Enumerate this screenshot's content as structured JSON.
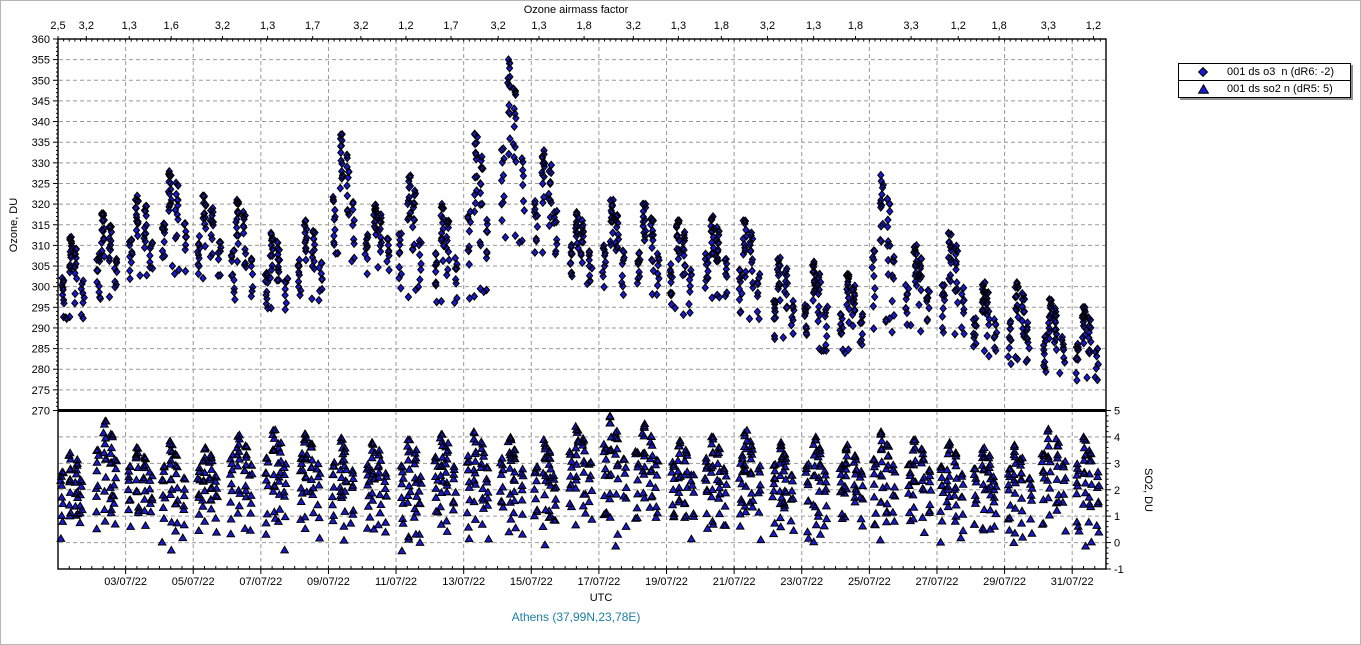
{
  "footer": {
    "text": "Athens (37,99N,23,78E)",
    "color": "#1C7FA6"
  },
  "legend": {
    "items": [
      {
        "marker": "diamond",
        "label": "001 ds o3  n (dR6: -2)"
      },
      {
        "marker": "triangle",
        "label": "001 ds so2 n (dR5: 5)"
      }
    ]
  },
  "chart_data": {
    "type": "scatter",
    "title": "Ozone airmass factor",
    "top_axis": {
      "label": "Ozone airmass factor",
      "ticks": [
        {
          "x": 0.0,
          "v": "2,5"
        },
        {
          "x": 0.027,
          "v": "3,2"
        },
        {
          "x": 0.068,
          "v": "1,3"
        },
        {
          "x": 0.108,
          "v": "1,6"
        },
        {
          "x": 0.157,
          "v": "3,2"
        },
        {
          "x": 0.2,
          "v": "1,3"
        },
        {
          "x": 0.243,
          "v": "1,7"
        },
        {
          "x": 0.289,
          "v": "3,2"
        },
        {
          "x": 0.332,
          "v": "1,2"
        },
        {
          "x": 0.375,
          "v": "1,7"
        },
        {
          "x": 0.42,
          "v": "3,2"
        },
        {
          "x": 0.459,
          "v": "1,3"
        },
        {
          "x": 0.502,
          "v": "1,8"
        },
        {
          "x": 0.549,
          "v": "3,2"
        },
        {
          "x": 0.592,
          "v": "1,3"
        },
        {
          "x": 0.633,
          "v": "1,8"
        },
        {
          "x": 0.677,
          "v": "3,2"
        },
        {
          "x": 0.721,
          "v": "1,3"
        },
        {
          "x": 0.761,
          "v": "1,8"
        },
        {
          "x": 0.814,
          "v": "3,3"
        },
        {
          "x": 0.859,
          "v": "1,2"
        },
        {
          "x": 0.898,
          "v": "1,8"
        },
        {
          "x": 0.945,
          "v": "3,3"
        },
        {
          "x": 0.988,
          "v": "1,2"
        }
      ]
    },
    "x_axis": {
      "label": "UTC",
      "range_days": 31,
      "start_date": "01/07/22",
      "ticks": [
        {
          "day": 3,
          "label": "03/07/22"
        },
        {
          "day": 5,
          "label": "05/07/22"
        },
        {
          "day": 7,
          "label": "07/07/22"
        },
        {
          "day": 9,
          "label": "09/07/22"
        },
        {
          "day": 11,
          "label": "11/07/22"
        },
        {
          "day": 13,
          "label": "13/07/22"
        },
        {
          "day": 15,
          "label": "15/07/22"
        },
        {
          "day": 17,
          "label": "17/07/22"
        },
        {
          "day": 19,
          "label": "19/07/22"
        },
        {
          "day": 21,
          "label": "21/07/22"
        },
        {
          "day": 23,
          "label": "23/07/22"
        },
        {
          "day": 25,
          "label": "25/07/22"
        },
        {
          "day": 27,
          "label": "27/07/22"
        },
        {
          "day": 29,
          "label": "29/07/22"
        },
        {
          "day": 31,
          "label": "31/07/22"
        }
      ]
    },
    "left_axis": {
      "label": "Ozone, DU",
      "min": 270,
      "max": 360,
      "step": 5
    },
    "right_axis": {
      "label": "SO2, DU",
      "min": -1,
      "max": 5,
      "step": 1
    },
    "series": [
      {
        "name": "001 ds o3  n (dR6: -2)",
        "marker": "diamond",
        "axis": "left"
      },
      {
        "name": "001 ds so2 n (dR5: 5)",
        "marker": "triangle",
        "axis": "right"
      }
    ],
    "daily": [
      {
        "day": 1,
        "o3": [
          291,
          312
        ],
        "so2": [
          0.0,
          3.4
        ]
      },
      {
        "day": 2,
        "o3": [
          297,
          318
        ],
        "so2": [
          -0.3,
          4.6
        ]
      },
      {
        "day": 3,
        "o3": [
          301,
          322
        ],
        "so2": [
          0.2,
          3.6
        ]
      },
      {
        "day": 4,
        "o3": [
          303,
          328
        ],
        "so2": [
          -0.8,
          3.9
        ]
      },
      {
        "day": 5,
        "o3": [
          300,
          322
        ],
        "so2": [
          0.1,
          3.6
        ]
      },
      {
        "day": 6,
        "o3": [
          295,
          321
        ],
        "so2": [
          0.2,
          4.1
        ]
      },
      {
        "day": 7,
        "o3": [
          293,
          313
        ],
        "so2": [
          -0.4,
          4.3
        ]
      },
      {
        "day": 8,
        "o3": [
          296,
          316
        ],
        "so2": [
          0.1,
          4.2
        ]
      },
      {
        "day": 9,
        "o3": [
          305,
          337
        ],
        "so2": [
          -0.2,
          4.0
        ]
      },
      {
        "day": 10,
        "o3": [
          303,
          320
        ],
        "so2": [
          0.0,
          3.8
        ]
      },
      {
        "day": 11,
        "o3": [
          297,
          327
        ],
        "so2": [
          -0.6,
          3.9
        ]
      },
      {
        "day": 12,
        "o3": [
          294,
          320
        ],
        "so2": [
          0.1,
          4.1
        ]
      },
      {
        "day": 13,
        "o3": [
          297,
          337
        ],
        "so2": [
          -0.3,
          4.2
        ]
      },
      {
        "day": 14,
        "o3": [
          310,
          355
        ],
        "so2": [
          0.0,
          4.0
        ]
      },
      {
        "day": 15,
        "o3": [
          306,
          333
        ],
        "so2": [
          -0.7,
          3.9
        ]
      },
      {
        "day": 16,
        "o3": [
          300,
          318
        ],
        "so2": [
          0.1,
          4.4
        ]
      },
      {
        "day": 17,
        "o3": [
          298,
          321
        ],
        "so2": [
          -0.5,
          4.8
        ]
      },
      {
        "day": 18,
        "o3": [
          296,
          320
        ],
        "so2": [
          -0.1,
          4.5
        ]
      },
      {
        "day": 19,
        "o3": [
          293,
          316
        ],
        "so2": [
          -0.3,
          3.9
        ]
      },
      {
        "day": 20,
        "o3": [
          297,
          317
        ],
        "so2": [
          0.0,
          4.0
        ]
      },
      {
        "day": 21,
        "o3": [
          291,
          316
        ],
        "so2": [
          -0.4,
          4.3
        ]
      },
      {
        "day": 22,
        "o3": [
          286,
          307
        ],
        "so2": [
          -0.1,
          3.8
        ]
      },
      {
        "day": 23,
        "o3": [
          284,
          306
        ],
        "so2": [
          -0.3,
          4.0
        ]
      },
      {
        "day": 24,
        "o3": [
          283,
          303
        ],
        "so2": [
          0.2,
          3.7
        ]
      },
      {
        "day": 25,
        "o3": [
          289,
          327
        ],
        "so2": [
          -0.2,
          4.2
        ]
      },
      {
        "day": 26,
        "o3": [
          289,
          310
        ],
        "so2": [
          0.1,
          3.9
        ]
      },
      {
        "day": 27,
        "o3": [
          286,
          313
        ],
        "so2": [
          -0.5,
          3.8
        ]
      },
      {
        "day": 28,
        "o3": [
          283,
          301
        ],
        "so2": [
          -0.1,
          3.6
        ]
      },
      {
        "day": 29,
        "o3": [
          281,
          301
        ],
        "so2": [
          -0.4,
          3.7
        ]
      },
      {
        "day": 30,
        "o3": [
          278,
          297
        ],
        "so2": [
          0.1,
          4.3
        ]
      },
      {
        "day": 31,
        "o3": [
          277,
          295
        ],
        "so2": [
          -0.6,
          4.0
        ]
      }
    ],
    "colors": {
      "point_fill": "#1A1ACD",
      "point_stroke": "#000000",
      "grid": "#999999",
      "axis": "#000000"
    },
    "layout_hints": {
      "grid": "dashed",
      "legend_position": "top-right",
      "panels": 2
    }
  }
}
